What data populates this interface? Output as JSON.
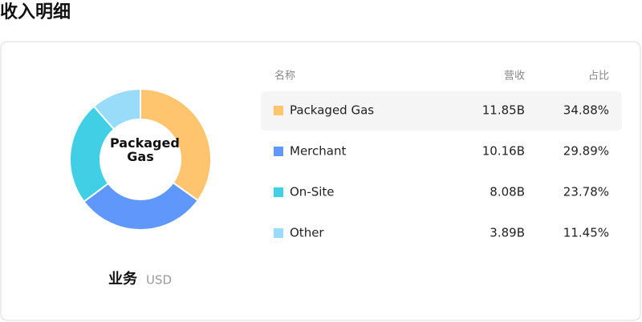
{
  "title": "收入明细",
  "chart_data": {
    "type": "pie",
    "donut": true,
    "center_label": "Packaged Gas",
    "categories": [
      "Packaged Gas",
      "Merchant",
      "On-Site",
      "Other"
    ],
    "values": [
      34.88,
      29.89,
      23.78,
      11.45
    ],
    "value_labels": [
      "34.88%",
      "29.89%",
      "23.78%",
      "11.45%"
    ],
    "revenue": [
      "11.85B",
      "10.16B",
      "8.08B",
      "3.89B"
    ],
    "colors": [
      "#ffc56e",
      "#5f97fb",
      "#40cfe5",
      "#98dcfa"
    ]
  },
  "table": {
    "headers": [
      "名称",
      "营收",
      "占比"
    ]
  },
  "footer": {
    "label": "业务",
    "unit": "USD"
  }
}
